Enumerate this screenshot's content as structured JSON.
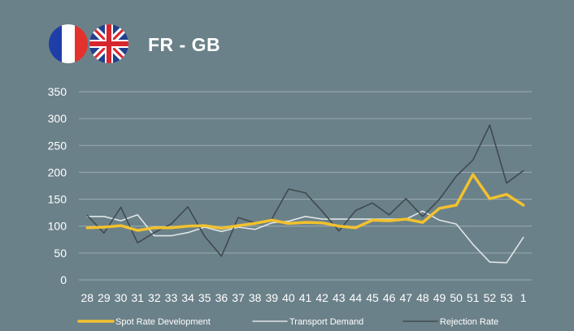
{
  "header": {
    "title": "FR - GB",
    "flag_left": "france-flag",
    "flag_right": "united-kingdom-flag"
  },
  "colors": {
    "background": "#6b8189",
    "grid": "#9aabb1",
    "spot_rate": "#f2c12e",
    "transport_demand": "#dfe5e8",
    "rejection_rate": "#3f4a4f"
  },
  "chart_data": {
    "type": "line",
    "title": "",
    "xlabel": "",
    "ylabel": "",
    "ylim": [
      0,
      350
    ],
    "yticks": [
      0,
      50,
      100,
      150,
      200,
      250,
      300,
      350
    ],
    "grid": true,
    "legend_position": "bottom",
    "categories": [
      "28",
      "29",
      "30",
      "31",
      "32",
      "33",
      "34",
      "35",
      "36",
      "37",
      "38",
      "39",
      "40",
      "41",
      "42",
      "43",
      "44",
      "45",
      "46",
      "47",
      "48",
      "49",
      "50",
      "51",
      "52",
      "53",
      "1"
    ],
    "series": [
      {
        "name": "Spot Rate Development",
        "color": "#f2c12e",
        "width": 3.5,
        "values": [
          97,
          98,
          101,
          92,
          97,
          97,
          100,
          101,
          96,
          101,
          105,
          111,
          105,
          107,
          106,
          100,
          97,
          111,
          110,
          113,
          107,
          133,
          139,
          196,
          151,
          159,
          139
        ]
      },
      {
        "name": "Transport Demand",
        "color": "#dfe5e8",
        "width": 1.6,
        "values": [
          118,
          118,
          110,
          121,
          82,
          82,
          88,
          98,
          90,
          98,
          94,
          106,
          109,
          118,
          113,
          113,
          113,
          113,
          113,
          113,
          128,
          111,
          104,
          66,
          33,
          32,
          79
        ]
      },
      {
        "name": "Rejection Rate",
        "color": "#3f4a4f",
        "width": 1.6,
        "values": [
          120,
          87,
          135,
          69,
          88,
          104,
          136,
          81,
          44,
          116,
          106,
          113,
          169,
          162,
          128,
          91,
          129,
          143,
          121,
          151,
          118,
          150,
          193,
          223,
          288,
          180,
          203
        ]
      }
    ]
  }
}
